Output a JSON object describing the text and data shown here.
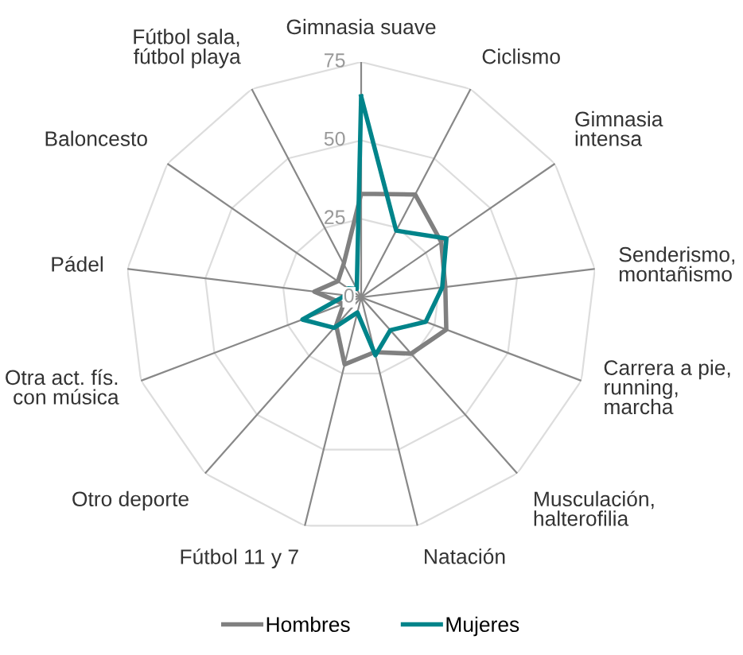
{
  "chart_data": {
    "type": "radar",
    "categories": [
      "Gimnasia suave",
      "Ciclismo",
      "Gimnasia\nintensa",
      "Senderismo,\nmontañismo",
      "Carrera a pie,\nrunning,\nmarcha",
      "Musculación,\nhalterofilia",
      "Natación",
      "Fútbol 11 y 7",
      "Otro deporte",
      "Otra act. fís.\ncon música",
      "Pádel",
      "Baloncesto",
      "Fútbol sala,\nfútbol playa"
    ],
    "series": [
      {
        "name": "Hombres",
        "color": "#808080",
        "values": [
          33,
          37,
          31,
          27,
          29,
          24,
          18,
          22,
          12,
          6,
          15,
          9,
          12
        ]
      },
      {
        "name": "Mujeres",
        "color": "#00848a",
        "values": [
          64,
          24,
          33,
          26,
          22,
          14,
          19,
          5,
          13,
          20,
          5,
          5,
          3
        ]
      }
    ],
    "ylim": [
      0,
      75
    ],
    "yticks": [
      0,
      25,
      50,
      75
    ],
    "grid": true,
    "legend": "bottom",
    "marker": "none",
    "line_style": "solid"
  }
}
